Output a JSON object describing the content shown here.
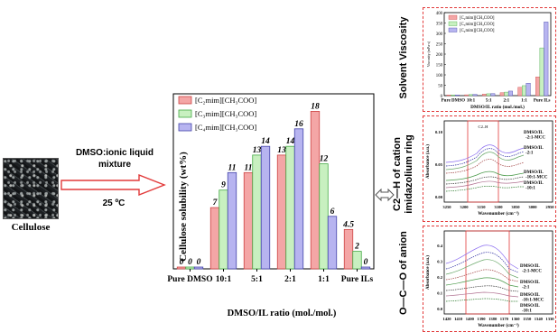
{
  "left": {
    "process_label_line1": "DMSO:ionic liquid",
    "process_label_line2": "mixture",
    "temperature": "25 ºC",
    "cellulose_label": "Cellulose"
  },
  "colors": {
    "c2": "#f4a6a6",
    "c3": "#c8f0c0",
    "c4": "#b7b4f0",
    "c2_edge": "#c44",
    "c3_edge": "#4a4",
    "c4_edge": "#44a",
    "arrow": "#e23a3a",
    "dashed_border": "#e23a3a"
  },
  "chart_data": [
    {
      "type": "bar",
      "title": "",
      "ylabel": "Cellulose solubility (wt%)",
      "xlabel": "DMSO/IL ratio (mol./mol.)",
      "categories": [
        "Pure DMSO",
        "10:1",
        "5:1",
        "2:1",
        "1:1",
        "Pure ILs"
      ],
      "series": [
        {
          "name": "[C₂mim][CH₃COO]",
          "values": [
            0,
            7,
            11,
            13,
            18,
            4.5
          ],
          "labels": [
            "0",
            "7",
            "11",
            "13",
            "18",
            "4.5"
          ]
        },
        {
          "name": "[C₃mim][CH₃COO]",
          "values": [
            0,
            9,
            13,
            14,
            12,
            2
          ],
          "labels": [
            "0",
            "9",
            "13",
            "14",
            "12",
            "2"
          ]
        },
        {
          "name": "[C₄mim][CH₃COO]",
          "values": [
            0,
            11,
            14,
            16,
            6,
            0
          ],
          "labels": [
            "0",
            "11",
            "14",
            "16",
            "6",
            "0"
          ]
        }
      ],
      "ylim": [
        0,
        20
      ],
      "legend": "top-left"
    },
    {
      "type": "bar",
      "title": "",
      "panel_label": "Solvent Viscosity",
      "ylabel": "Viscosity (mPa·s)",
      "xlabel": "DMSO/IL ratio (mol./mol.)",
      "categories": [
        "Pure DMSO",
        "10:1",
        "5:1",
        "2:1",
        "1:1",
        "Pure ILs"
      ],
      "yticks": [
        "0",
        "50",
        "100",
        "150",
        "200",
        "250",
        "300",
        "350",
        "400"
      ],
      "series": [
        {
          "name": "[C₂mim][CH₃COO]",
          "values": [
            2,
            4,
            7,
            14,
            40,
            90
          ]
        },
        {
          "name": "[C₃mim][CH₃COO]",
          "values": [
            2,
            5,
            9,
            17,
            48,
            230
          ]
        },
        {
          "name": "[C₄mim][CH₃COO]",
          "values": [
            2,
            6,
            10,
            22,
            60,
            355
          ]
        }
      ],
      "ylim": [
        0,
        400
      ],
      "legend": "top-left"
    },
    {
      "type": "line",
      "title": "",
      "panel_label": "C2—H of cation imidazolium ring",
      "ylabel": "Absorbance (a.u.)",
      "xlabel": "Wavenumber (cm⁻¹)",
      "xticks": [
        "3250",
        "3200",
        "3150",
        "3100",
        "3050",
        "3000",
        "2950"
      ],
      "yticks": [
        "0.00",
        "0.05",
        "0.10"
      ],
      "region_label": "C2–H",
      "series_labels": [
        "DMSO/IL -2:1-MCC",
        "DMSO/IL -2:1",
        "DMSO/IL -10:1-MCC",
        "DMSO/IL -10:1"
      ]
    },
    {
      "type": "line",
      "title": "",
      "panel_label": "O—C—O of anion",
      "ylabel": "Absorbance (a.u.)",
      "xlabel": "Wavenumber (cm⁻¹)",
      "xticks": [
        "1420",
        "1410",
        "1400",
        "1390",
        "1380",
        "1370",
        "1360",
        "1350",
        "1340",
        "1330"
      ],
      "yticks": [
        "0.0",
        "0.1",
        "0.2",
        "0.3",
        "0.4"
      ],
      "series_labels": [
        "DMSO/IL -2:1-MCC",
        "DMSO/IL -2:1",
        "DMSO/IL -10:1-MCC",
        "DMSO/IL -10:1"
      ]
    }
  ]
}
